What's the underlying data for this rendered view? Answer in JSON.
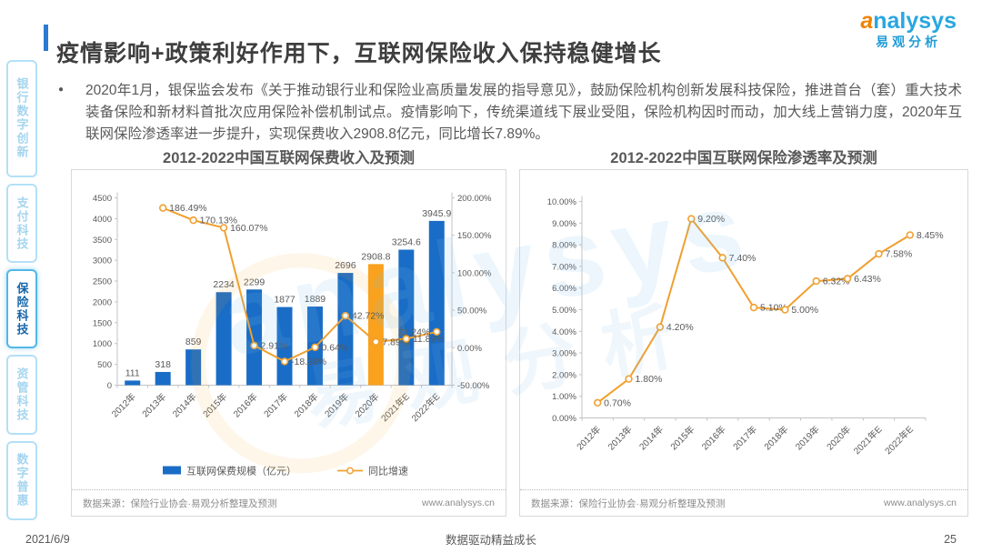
{
  "header": {
    "title": "疫情影响+政策利好作用下，互联网保险收入保持稳健增长",
    "accent_color": "#2b7bd4"
  },
  "logo": {
    "brand_a": "a",
    "brand_rest": "nalysys",
    "subtitle": "易观分析",
    "brand_color": "#29a7e0",
    "accent_color": "#f08300"
  },
  "sidebar": {
    "items": [
      {
        "label": "银行数字创新",
        "active": false
      },
      {
        "label": "支付科技",
        "active": false
      },
      {
        "label": "保险科技",
        "active": true
      },
      {
        "label": "资管科技",
        "active": false
      },
      {
        "label": "数字普惠",
        "active": false
      }
    ]
  },
  "intro": {
    "bullet": "●",
    "text": "2020年1月，银保监会发布《关于推动银行业和保险业高质量发展的指导意见》，鼓励保险机构创新发展科技保险，推进首台（套）重大技术装备保险和新材料首批次应用保险补偿机制试点。疫情影响下，传统渠道线下展业受阻，保险机构因时而动，加大线上营销力度，2020年互联网保险渗透率进一步提升，实现保费收入2908.8亿元，同比增长7.89%。"
  },
  "watermark": {
    "line1": "analysys",
    "line2": "易观分析"
  },
  "chart_data": [
    {
      "type": "bar",
      "title": "2012-2022中国互联网保费收入及预测",
      "categories": [
        "2012年",
        "2013年",
        "2014年",
        "2015年",
        "2016年",
        "2017年",
        "2018年",
        "2019年",
        "2020年",
        "2021年E",
        "2022年E"
      ],
      "series": [
        {
          "name": "互联网保费规模（亿元）",
          "type": "bar",
          "axis": "left",
          "values": [
            111,
            318,
            859,
            2234,
            2299,
            1877,
            1889,
            2696,
            2908.8,
            3254.6,
            3945.9
          ],
          "labels": [
            "111",
            "318",
            "859",
            "2234",
            "2299",
            "1877",
            "1889",
            "2696",
            "2908.8",
            "3254.6",
            "3945.9"
          ],
          "color": "#1a6dc6",
          "highlight_index": 8,
          "highlight_color": "#faa21e"
        },
        {
          "name": "同比增速",
          "type": "line",
          "axis": "right",
          "values": [
            null,
            186.49,
            170.13,
            160.07,
            2.91,
            -18.36,
            0.64,
            42.72,
            7.89,
            11.89,
            21.24
          ],
          "labels": [
            "",
            "186.49%",
            "170.13%",
            "160.07%",
            "2.91%",
            "-18.36%",
            "0.64%",
            "42.72%",
            "7.89%",
            "11.89%",
            "21.24%"
          ],
          "color": "#f0a030"
        }
      ],
      "left_axis": {
        "min": 0,
        "max": 4500,
        "step": 500,
        "format": "int"
      },
      "right_axis": {
        "min": -50,
        "max": 200,
        "step": 50,
        "format": "percent2"
      },
      "grid": false,
      "legend": [
        "互联网保费规模（亿元）",
        "同比增速"
      ],
      "legend_position": "bottom",
      "source": "数据来源：保险行业协会·易观分析整理及预测",
      "url": "www.analysys.cn"
    },
    {
      "type": "line",
      "title": "2012-2022中国互联网保险渗透率及预测",
      "categories": [
        "2012年",
        "2013年",
        "2014年",
        "2015年",
        "2016年",
        "2017年",
        "2018年",
        "2019年",
        "2020年",
        "2021年E",
        "2022年E"
      ],
      "series": [
        {
          "name": "互联网保险渗透率",
          "type": "line",
          "axis": "left",
          "values": [
            0.7,
            1.8,
            4.2,
            9.2,
            7.4,
            5.1,
            5.0,
            6.32,
            6.43,
            7.58,
            8.45
          ],
          "labels": [
            "0.70%",
            "1.80%",
            "4.20%",
            "9.20%",
            "7.40%",
            "5.10%",
            "5.00%",
            "6.32%",
            "6.43%",
            "7.58%",
            "8.45%"
          ],
          "color": "#f0a030"
        }
      ],
      "left_axis": {
        "min": 0,
        "max": 10,
        "step": 1,
        "format": "percent2"
      },
      "grid": false,
      "source": "数据来源：保险行业协会·易观分析整理及预测",
      "url": "www.analysys.cn"
    }
  ],
  "footer": {
    "date": "2021/6/9",
    "slogan": "数据驱动精益成长",
    "page": "25"
  }
}
